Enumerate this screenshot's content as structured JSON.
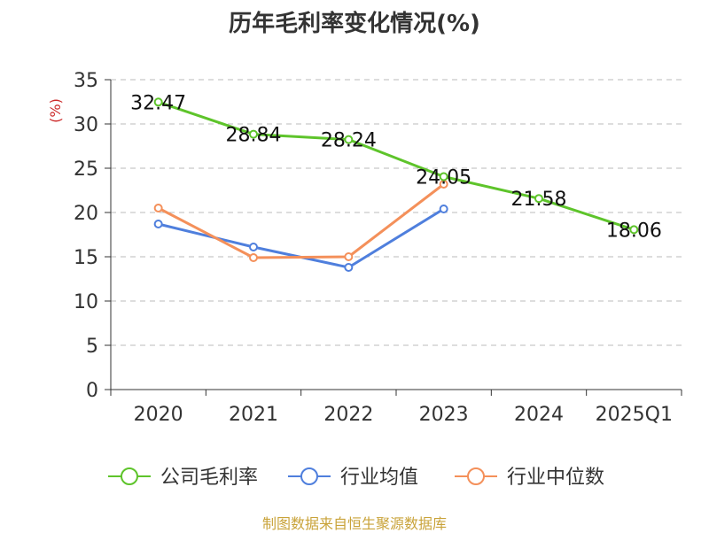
{
  "title": "历年毛利率变化情况(%)",
  "footer": "制图数据来自恒生聚源数据库",
  "chart_data": {
    "type": "line",
    "title": "历年毛利率变化情况(%)",
    "ylabel": "(%)",
    "ylim": [
      0,
      35
    ],
    "yticks": [
      0,
      5,
      10,
      15,
      20,
      25,
      30,
      35
    ],
    "grid": true,
    "legend_position": "bottom",
    "categories": [
      "2020",
      "2021",
      "2022",
      "2023",
      "2024",
      "2025Q1"
    ],
    "series": [
      {
        "name": "公司毛利率",
        "color": "#5ec42b",
        "values": [
          32.47,
          28.84,
          28.24,
          24.05,
          21.58,
          18.06
        ],
        "labels": [
          "32.47",
          "28.84",
          "28.24",
          "24.05",
          "21.58",
          "18.06"
        ]
      },
      {
        "name": "行业均值",
        "color": "#4f7fdd",
        "values": [
          18.7,
          16.1,
          13.8,
          20.4,
          null,
          null
        ]
      },
      {
        "name": "行业中位数",
        "color": "#f4905a",
        "values": [
          20.5,
          14.9,
          15.0,
          23.2,
          null,
          null
        ]
      }
    ]
  }
}
